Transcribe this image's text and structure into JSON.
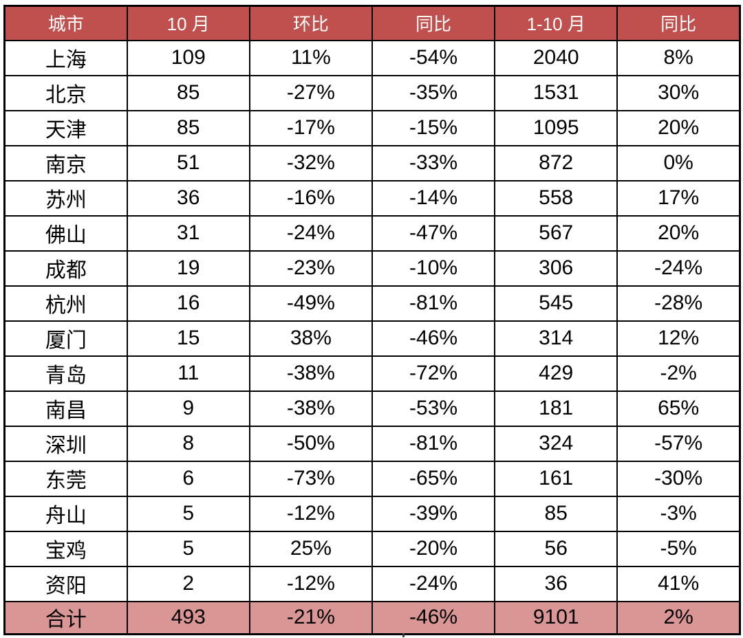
{
  "chart_data": {
    "type": "table",
    "columns": [
      "城市",
      "10 月",
      "环比",
      "同比",
      "1-10 月",
      "同比"
    ],
    "rows": [
      [
        "上海",
        "109",
        "11%",
        "-54%",
        "2040",
        "8%"
      ],
      [
        "北京",
        "85",
        "-27%",
        "-35%",
        "1531",
        "30%"
      ],
      [
        "天津",
        "85",
        "-17%",
        "-15%",
        "1095",
        "20%"
      ],
      [
        "南京",
        "51",
        "-32%",
        "-33%",
        "872",
        "0%"
      ],
      [
        "苏州",
        "36",
        "-16%",
        "-14%",
        "558",
        "17%"
      ],
      [
        "佛山",
        "31",
        "-24%",
        "-47%",
        "567",
        "20%"
      ],
      [
        "成都",
        "19",
        "-23%",
        "-10%",
        "306",
        "-24%"
      ],
      [
        "杭州",
        "16",
        "-49%",
        "-81%",
        "545",
        "-28%"
      ],
      [
        "厦门",
        "15",
        "38%",
        "-46%",
        "314",
        "12%"
      ],
      [
        "青岛",
        "11",
        "-38%",
        "-72%",
        "429",
        "-2%"
      ],
      [
        "南昌",
        "9",
        "-38%",
        "-53%",
        "181",
        "65%"
      ],
      [
        "深圳",
        "8",
        "-50%",
        "-81%",
        "324",
        "-57%"
      ],
      [
        "东莞",
        "6",
        "-73%",
        "-65%",
        "161",
        "-30%"
      ],
      [
        "舟山",
        "5",
        "-12%",
        "-39%",
        "85",
        "-3%"
      ],
      [
        "宝鸡",
        "5",
        "25%",
        "-20%",
        "56",
        "-5%"
      ],
      [
        "资阳",
        "2",
        "-12%",
        "-24%",
        "36",
        "41%"
      ]
    ],
    "total_row": [
      "合计",
      "493",
      "-21%",
      "-46%",
      "9101",
      "2%"
    ],
    "layout_hints": {
      "column_count": 6,
      "body_row_count": 16,
      "alignment": "center",
      "grid": "on"
    }
  },
  "colors": {
    "header_bg": "#C0504D",
    "header_text": "#FFFFFF",
    "total_bg": "#D99694",
    "body_bg": "#FFFFFF",
    "border": "#000000",
    "text": "#000000"
  }
}
